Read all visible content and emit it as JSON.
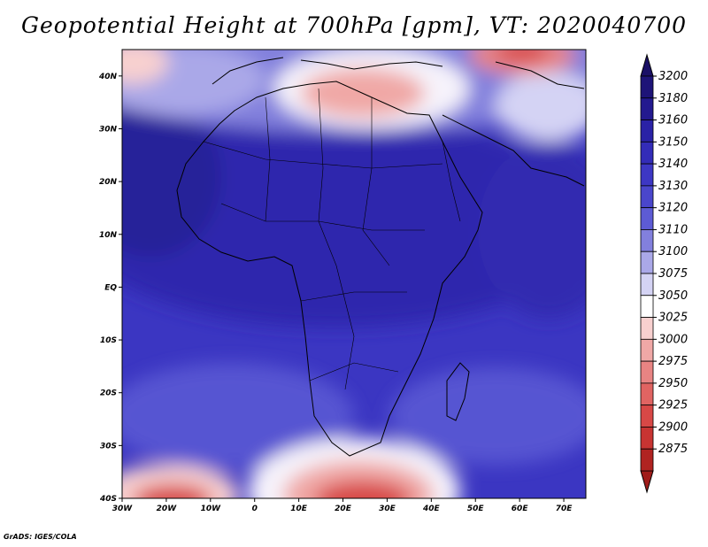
{
  "title": "Geopotential Height at 700hPa [gpm], VT: 2020040700",
  "credit": "GrADS: IGES/COLA",
  "map": {
    "lon_range": [
      -30,
      75
    ],
    "lat_range": [
      -40,
      45
    ],
    "lon_ticks": [
      {
        "value": -30,
        "label": "30W"
      },
      {
        "value": -20,
        "label": "20W"
      },
      {
        "value": -10,
        "label": "10W"
      },
      {
        "value": 0,
        "label": "0"
      },
      {
        "value": 10,
        "label": "10E"
      },
      {
        "value": 20,
        "label": "20E"
      },
      {
        "value": 30,
        "label": "30E"
      },
      {
        "value": 40,
        "label": "40E"
      },
      {
        "value": 50,
        "label": "50E"
      },
      {
        "value": 60,
        "label": "60E"
      },
      {
        "value": 70,
        "label": "70E"
      }
    ],
    "lat_ticks": [
      {
        "value": 40,
        "label": "40N"
      },
      {
        "value": 30,
        "label": "30N"
      },
      {
        "value": 20,
        "label": "20N"
      },
      {
        "value": 10,
        "label": "10N"
      },
      {
        "value": 0,
        "label": "EQ"
      },
      {
        "value": -10,
        "label": "10S"
      },
      {
        "value": -20,
        "label": "20S"
      },
      {
        "value": -30,
        "label": "30S"
      },
      {
        "value": -40,
        "label": "40S"
      }
    ]
  },
  "colorbar": {
    "levels": [
      {
        "label": "3200",
        "color": "#1e1478"
      },
      {
        "label": "3180",
        "color": "#23198f"
      },
      {
        "label": "3160",
        "color": "#2a22a6"
      },
      {
        "label": "3150",
        "color": "#332cb8"
      },
      {
        "label": "3140",
        "color": "#3d37c4"
      },
      {
        "label": "3130",
        "color": "#4a46cc"
      },
      {
        "label": "3120",
        "color": "#5d5bd4"
      },
      {
        "label": "3110",
        "color": "#8280dd"
      },
      {
        "label": "3100",
        "color": "#aaa8e8"
      },
      {
        "label": "3075",
        "color": "#d4d3f4"
      },
      {
        "label": "3050",
        "color": "#ffffff"
      },
      {
        "label": "3025",
        "color": "#f8d0cf"
      },
      {
        "label": "3000",
        "color": "#f0a8a6"
      },
      {
        "label": "2975",
        "color": "#e88483"
      },
      {
        "label": "2950",
        "color": "#e06462"
      },
      {
        "label": "2925",
        "color": "#d84846"
      },
      {
        "label": "2900",
        "color": "#c83432"
      },
      {
        "label": "2875",
        "color": "#b02321"
      }
    ],
    "top_color": "#1a1066",
    "bottom_color": "#a01c1a"
  }
}
